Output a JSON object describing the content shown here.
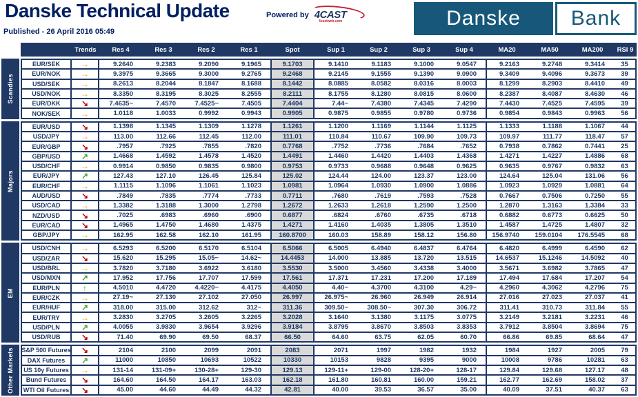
{
  "header": {
    "title": "Danske Technical Update",
    "published": "Published - 26 April 2016 05:49",
    "powered_by": "Powered by",
    "fourcast": "4CAST",
    "fourcast_sub": "4castweb.com",
    "logo_danske": "Danske",
    "logo_bank": "Bank"
  },
  "colors": {
    "navy": "#1f3864",
    "title": "#002060",
    "brand": "#17587a",
    "spot_bg": "#d9d9d9",
    "trend_up": "#4ca32e",
    "trend_side": "#f2a50c",
    "trend_down": "#c00000",
    "trend_strong_up": "#2eae2e"
  },
  "trend_icons": {
    "up": "↗",
    "side": "→",
    "down": "↘",
    "strong_up": "↑"
  },
  "table": {
    "columns": [
      "Trends",
      "Res 4",
      "Res 3",
      "Res 2",
      "Res 1",
      "Spot",
      "Sup 1",
      "Sup 2",
      "Sup 3",
      "Sup 4",
      "MA20",
      "MA50",
      "MA200",
      "RSI 9"
    ],
    "groups": [
      {
        "label": "Scandies",
        "rows": [
          {
            "pair": "EUR/SEK",
            "trend": "side",
            "values": [
              "9.2640",
              "9.2383",
              "9.2090",
              "9.1965",
              "9.1703",
              "9.1410",
              "9.1183",
              "9.1000",
              "9.0547",
              "9.2163",
              "9.2748",
              "9.3414",
              "35"
            ]
          },
          {
            "pair": "EUR/NOK",
            "trend": "side",
            "values": [
              "9.3975",
              "9.3665",
              "9.3000",
              "9.2765",
              "9.2468",
              "9.2145",
              "9.1555",
              "9.1390",
              "9.0900",
              "9.3409",
              "9.4096",
              "9.3673",
              "39"
            ]
          },
          {
            "pair": "USD/SEK",
            "trend": "side",
            "values": [
              "8.2613",
              "8.2044",
              "8.1847",
              "8.1688",
              "8.1442",
              "8.0885",
              "8.0582",
              "8.0316",
              "8.0003",
              "8.1299",
              "8.2903",
              "8.4410",
              "49"
            ]
          },
          {
            "pair": "USD/NOK",
            "trend": "side",
            "values": [
              "8.3350",
              "8.3195",
              "8.3025",
              "8.2555",
              "8.2111",
              "8.1755",
              "8.1280",
              "8.0815",
              "8.0600",
              "8.2387",
              "8.4087",
              "8.4630",
              "46"
            ]
          },
          {
            "pair": "EUR/DKK",
            "trend": "down",
            "values": [
              "7.4635~",
              "7.4570",
              "7.4525~",
              "7.4505",
              "7.4404",
              "7.44~",
              "7.4380",
              "7.4345",
              "7.4290",
              "7.4430",
              "7.4525",
              "7.4595",
              "39"
            ]
          },
          {
            "pair": "NOK/SEK",
            "trend": "side",
            "values": [
              "1.0118",
              "1.0033",
              "0.9992",
              "0.9943",
              "0.9905",
              "0.9875",
              "0.9855",
              "0.9780",
              "0.9736",
              "0.9854",
              "0.9843",
              "0.9963",
              "56"
            ]
          }
        ]
      },
      {
        "label": "Majors",
        "rows": [
          {
            "pair": "EUR/USD",
            "trend": "down",
            "values": [
              "1.1398",
              "1.1345",
              "1.1309",
              "1.1278",
              "1.1261",
              "1.1200",
              "1.1169",
              "1.1144",
              "1.1125",
              "1.1333",
              "1.1188",
              "1.1067",
              "44"
            ]
          },
          {
            "pair": "USD/JPY",
            "trend": "side",
            "values": [
              "113.00",
              "112.66",
              "112.45",
              "112.00",
              "111.01",
              "110.84",
              "110.67",
              "109.90",
              "109.73",
              "109.97",
              "111.77",
              "118.47",
              "57"
            ]
          },
          {
            "pair": "EUR/GBP",
            "trend": "down",
            "values": [
              ".7957",
              ".7925",
              ".7855",
              ".7820",
              "0.7768",
              ".7752",
              ".7736",
              ".7684",
              ".7652",
              "0.7938",
              "0.7862",
              "0.7441",
              "25"
            ]
          },
          {
            "pair": "GBP/USD",
            "trend": "up",
            "values": [
              "1.4668",
              "1.4592",
              "1.4578",
              "1.4520",
              "1.4491",
              "1.4460",
              "1.4420",
              "1.4403",
              "1.4368",
              "1.4271",
              "1.4227",
              "1.4886",
              "68"
            ]
          },
          {
            "pair": "USD/CHF",
            "trend": "side",
            "values": [
              "0.9914",
              "0.9850",
              "0.9835",
              "0.9800",
              "0.9753",
              "0.9733",
              "0.9688",
              "0.9648",
              "0.9625",
              "0.9635",
              "0.9767",
              "0.9832",
              "63"
            ]
          },
          {
            "pair": "EUR/JPY",
            "trend": "up",
            "values": [
              "127.43",
              "127.10",
              "126.45",
              "125.84",
              "125.02",
              "124.44",
              "124.00",
              "123.37",
              "123.00",
              "124.64",
              "125.04",
              "131.06",
              "56"
            ]
          },
          {
            "pair": "EUR/CHF",
            "trend": "side",
            "values": [
              "1.1115",
              "1.1096",
              "1.1061",
              "1.1023",
              "1.0981",
              "1.0964",
              "1.0930",
              "1.0900",
              "1.0886",
              "1.0923",
              "1.0929",
              "1.0881",
              "64"
            ]
          },
          {
            "pair": "AUD/USD",
            "trend": "down",
            "values": [
              ".7849",
              ".7835",
              ".7774",
              ".7733",
              "0.7711",
              ".7680",
              ".7619",
              ".7593",
              ".7528",
              "0.7667",
              "0.7506",
              "0.7250",
              "55"
            ]
          },
          {
            "pair": "USD/CAD",
            "trend": "side",
            "values": [
              "1.3382",
              "1.3188",
              "1.3000",
              "1.2798",
              "1.2672",
              "1.2633",
              "1.2618",
              "1.2590",
              "1.2500",
              "1.2870",
              "1.3163",
              "1.3384",
              "33"
            ]
          },
          {
            "pair": "NZD/USD",
            "trend": "down",
            "values": [
              ".7025",
              ".6983",
              ".6960",
              ".6900",
              "0.6877",
              ".6824",
              ".6760",
              ".6735",
              ".6718",
              "0.6882",
              "0.6773",
              "0.6625",
              "50"
            ]
          },
          {
            "pair": "EUR/CAD",
            "trend": "down",
            "values": [
              "1.4965",
              "1.4750",
              "1.4680",
              "1.4375",
              "1.4271",
              "1.4160",
              "1.4035",
              "1.3805",
              "1.3510",
              "1.4587",
              "1.4725",
              "1.4807",
              "32"
            ]
          },
          {
            "pair": "GBP/JPY",
            "trend": "side",
            "values": [
              "162.95",
              "162.58",
              "162.10",
              "161.95",
              "160.8700",
              "160.03",
              "158.89",
              "158.12",
              "156.80",
              "156.9740",
              "159.0104",
              "176.5545",
              "68"
            ]
          }
        ]
      },
      {
        "label": "EM",
        "rows": [
          {
            "pair": "USD/CNH",
            "trend": "side",
            "values": [
              "6.5293",
              "6.5200",
              "6.5170",
              "6.5104",
              "6.5066",
              "6.5005",
              "6.4940",
              "6.4837",
              "6.4764",
              "6.4820",
              "6.4999",
              "6.4590",
              "62"
            ]
          },
          {
            "pair": "USD/ZAR",
            "trend": "down",
            "values": [
              "15.620",
              "15.295",
              "15.05~",
              "14.62~",
              "14.4453",
              "14.000",
              "13.885",
              "13.720",
              "13.515",
              "14.6537",
              "15.1246",
              "14.5092",
              "40"
            ]
          },
          {
            "pair": "USD/BRL",
            "trend": "side",
            "values": [
              "3.7820",
              "3.7180",
              "3.6922",
              "3.6180",
              "3.5530",
              "3.5000",
              "3.4560",
              "3.4338",
              "3.4000",
              "3.5671",
              "3.6982",
              "3.7865",
              "47"
            ]
          },
          {
            "pair": "USD/MXN",
            "trend": "up",
            "values": [
              "17.952",
              "17.756",
              "17.707",
              "17.599",
              "17.561",
              "17.371",
              "17.231",
              "17.200",
              "17.189",
              "17.494",
              "17.684",
              "17.207",
              "54"
            ]
          },
          {
            "pair": "EUR/PLN",
            "trend": "strong_up",
            "values": [
              "4.5010",
              "4.4720",
              "4.4220~",
              "4.4175",
              "4.4050",
              "4.40~",
              "4.3700",
              "4.3100",
              "4.29~",
              "4.2960",
              "4.3062",
              "4.2796",
              "75"
            ]
          },
          {
            "pair": "EUR/CZK",
            "trend": "side",
            "values": [
              "27.19~",
              "27.130",
              "27.102",
              "27.050",
              "26.997",
              "26.975~",
              "26.960",
              "26.949",
              "26.914",
              "27.016",
              "27.023",
              "27.037",
              "41"
            ]
          },
          {
            "pair": "EUR/HUF",
            "trend": "up",
            "values": [
              "318.00",
              "315.00",
              "312.62",
              "312~",
              "311.36",
              "309.50~",
              "308.50~",
              "307.30",
              "306.72",
              "311.41",
              "310.73",
              "311.84",
              "55"
            ]
          },
          {
            "pair": "EUR/TRY",
            "trend": "side",
            "values": [
              "3.2830",
              "3.2705",
              "3.2605",
              "3.2265",
              "3.2028",
              "3.1640",
              "3.1380",
              "3.1175",
              "3.0775",
              "3.2149",
              "3.2181",
              "3.2231",
              "46"
            ]
          },
          {
            "pair": "USD/PLN",
            "trend": "up",
            "values": [
              "4.0055",
              "3.9830",
              "3.9654",
              "3.9296",
              "3.9184",
              "3.8795",
              "3.8670",
              "3.8503",
              "3.8353",
              "3.7912",
              "3.8504",
              "3.8694",
              "75"
            ]
          },
          {
            "pair": "USD/RUB",
            "trend": "down",
            "values": [
              "71.40",
              "69.90",
              "69.50",
              "68.37",
              "66.50",
              "64.60",
              "63.75",
              "62.05",
              "60.70",
              "66.86",
              "69.85",
              "68.64",
              "47"
            ]
          }
        ]
      },
      {
        "label": "Other Markets",
        "rows": [
          {
            "pair": "S&P 500 Futures",
            "trend": "down",
            "values": [
              "2104",
              "2100",
              "2099",
              "2091",
              "2083",
              "2071",
              "1997",
              "1982",
              "1932",
              "1984",
              "1927",
              "2005",
              "79"
            ]
          },
          {
            "pair": "DAX Futures",
            "trend": "up",
            "values": [
              "11000",
              "10850",
              "10693",
              "10522",
              "10330",
              "10153",
              "9828",
              "9395",
              "9000",
              "10008",
              "9786",
              "10281",
              "63"
            ]
          },
          {
            "pair": "US 10y Futures",
            "trend": "side",
            "values": [
              "131-14",
              "131-09+",
              "130-28+",
              "129-30",
              "129.13",
              "129-11+",
              "129-00",
              "128-20+",
              "128-17",
              "129.84",
              "129.68",
              "127.17",
              "48"
            ]
          },
          {
            "pair": "Bund Futures",
            "trend": "down",
            "values": [
              "164.60",
              "164.50",
              "164.17",
              "163.03",
              "162.18",
              "161.80",
              "160.81",
              "160.00",
              "159.21",
              "162.77",
              "162.69",
              "158.02",
              "37"
            ]
          },
          {
            "pair": "WTI Oil Futures",
            "trend": "down",
            "values": [
              "45.00",
              "44.60",
              "44.49",
              "44.32",
              "42.81",
              "40.00",
              "39.53",
              "36.57",
              "35.00",
              "40.09",
              "37.51",
              "40.37",
              "63"
            ]
          }
        ]
      }
    ]
  }
}
